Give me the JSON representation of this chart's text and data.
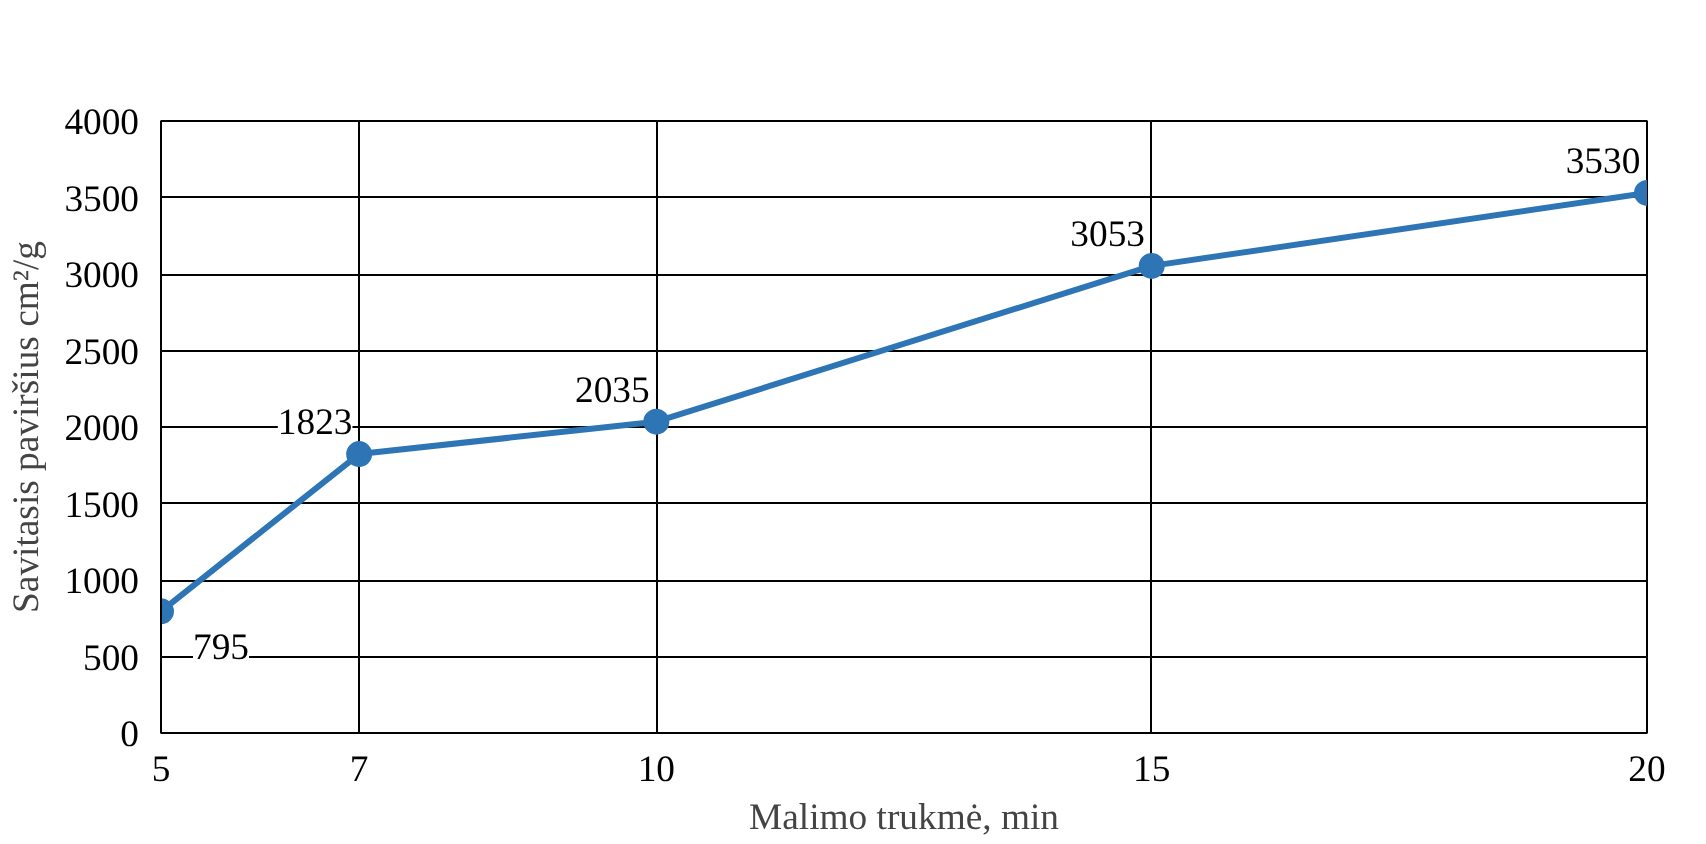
{
  "chart_data": {
    "type": "line",
    "xlabel": "Malimo trukmė, min",
    "ylabel": "Savitasis paviršius cm²/g",
    "x": [
      5,
      7,
      10,
      15,
      20
    ],
    "series": [
      {
        "color": "#2e75b6",
        "values": [
          795,
          1823,
          2035,
          3053,
          3530
        ]
      }
    ],
    "xlim": [
      5,
      20
    ],
    "xticks": [
      5,
      7,
      10,
      15,
      20
    ],
    "ylim": [
      0,
      4000
    ],
    "yticks": [
      0,
      500,
      1000,
      1500,
      2000,
      2500,
      3000,
      3500,
      4000
    ],
    "grid": true,
    "marker": "circle",
    "line_style": "solid",
    "data_labels": true
  }
}
